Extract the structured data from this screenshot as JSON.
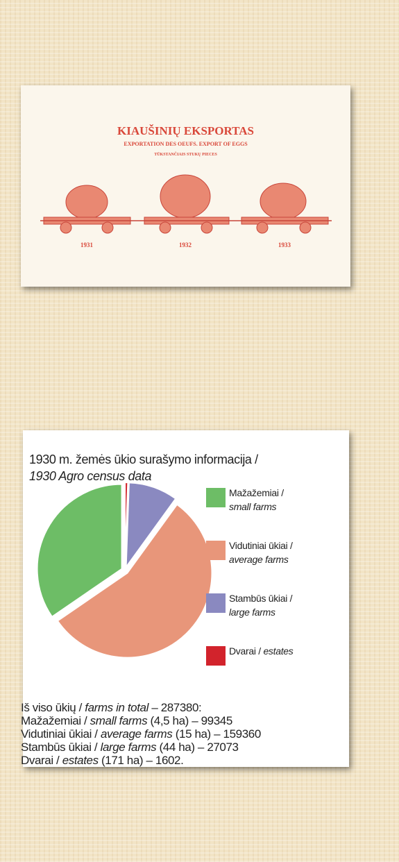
{
  "poster": {
    "title": "KIAUŠINIŲ EKSPORTAS",
    "subtitle": "EXPORTATION DES OEUFS. EXPORT OF EGGS",
    "note": "TŪKSTANČIAIS STUKŲ PIECES",
    "years": [
      "1931",
      "1932",
      "1933"
    ]
  },
  "chart_data": {
    "type": "pie",
    "title": "1930 m. žemės ūkio surašymo informacija /",
    "subtitle": "1930 Agro census data",
    "categories": [
      "Mažažemiai /",
      "Vidutiniai ūkiai /",
      "Stambūs ūkiai /",
      "Dvarai /"
    ],
    "categories_en": [
      "small farms",
      "average farms",
      "large farms",
      "estates"
    ],
    "colors": [
      "#6dbd66",
      "#e8967a",
      "#8a89c0",
      "#d2232c"
    ],
    "values": [
      99345,
      159360,
      27073,
      1602
    ]
  },
  "census_text": {
    "total_label": "Iš viso ūkių /",
    "total_label_en": "farms in total",
    "dash": "–",
    "total": 287380,
    "colon": ":",
    "sizes": [
      "(4,5 ha)",
      "(15 ha)",
      "(44 ha)",
      "(171 ha)"
    ],
    "end": "."
  }
}
